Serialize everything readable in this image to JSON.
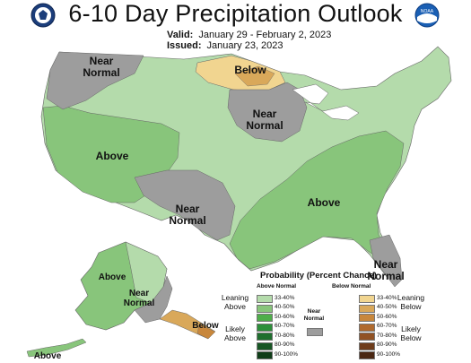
{
  "title": "6-10 Day Precipitation Outlook",
  "valid_label": "Valid:",
  "valid_value": "January 29 - February 2, 2023",
  "issued_label": "Issued:",
  "issued_value": "January 23, 2023",
  "logos": {
    "left": "doc-seal-icon",
    "right": "noaa-logo-icon",
    "noaa_text": "NOAA"
  },
  "colors": {
    "above_33_40": "#b4dbab",
    "above_40_50": "#88c57b",
    "near_normal": "#9d9d9d",
    "below_33_40": "#f1d590",
    "below_40_50": "#d9a85a",
    "below_50_60": "#c8873c"
  },
  "regions": {
    "near_normal_nw": "Near\nNormal",
    "below_north": "Below",
    "near_normal_midwest": "Near\nNormal",
    "above_west": "Above",
    "near_normal_south": "Near\nNormal",
    "above_southeast": "Above",
    "near_normal_florida": "Near\nNormal",
    "above_alaska": "Above",
    "near_normal_alaska": "Near\nNormal",
    "below_alaska": "Below",
    "above_aleutians": "Above"
  },
  "legend": {
    "title": "Probability (Percent Chance)",
    "above_header": "Above Normal",
    "below_header": "Below Normal",
    "near_header": "Near\nNormal",
    "leaning_above": "Leaning\nAbove",
    "likely_above": "Likely\nAbove",
    "leaning_below": "Leaning\nBelow",
    "likely_below": "Likely\nBelow",
    "above_ranges": [
      "33-40%",
      "40-50%",
      "50-60%",
      "60-70%",
      "70-80%",
      "80-90%",
      "90-100%"
    ],
    "below_ranges": [
      "33-40%",
      "40-50%",
      "50-60%",
      "60-70%",
      "70-80%",
      "80-90%",
      "90-100%"
    ],
    "above_colors": [
      "#b4dbab",
      "#88c57b",
      "#4fae4a",
      "#2d8f3a",
      "#1f6f2e",
      "#175624",
      "#0f3d18"
    ],
    "below_colors": [
      "#f1d590",
      "#d9a85a",
      "#c8873c",
      "#b06a2e",
      "#915224",
      "#6e3c1b",
      "#4a2713"
    ],
    "near_color": "#9d9d9d"
  }
}
